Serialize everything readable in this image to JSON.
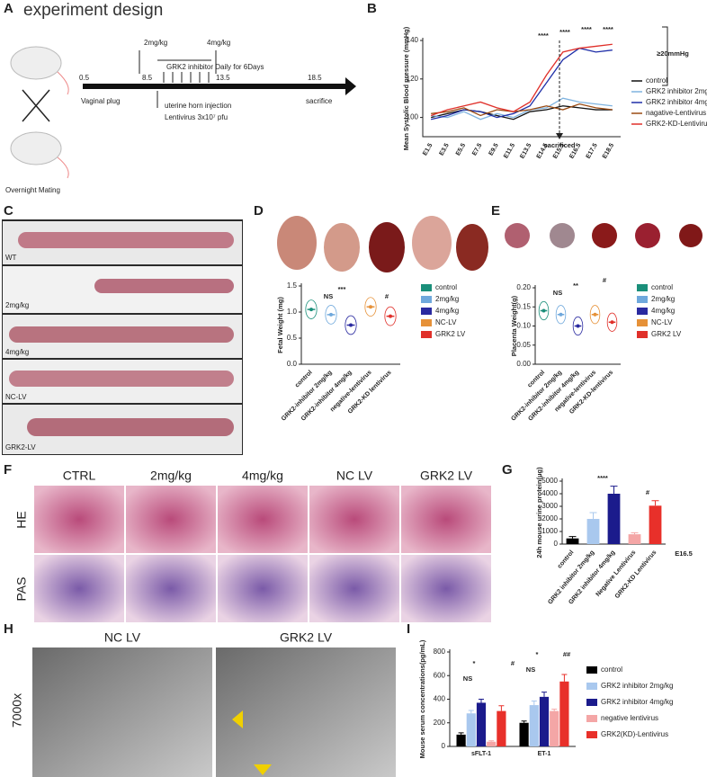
{
  "letters": [
    "A",
    "B",
    "C",
    "D",
    "E",
    "F",
    "G",
    "H",
    "I"
  ],
  "A": {
    "title": "experiment design",
    "dose_low": "2mg/kg",
    "dose_high": "4mg/kg",
    "treatment": "GRK2 inhibitor Daily for 6Days",
    "days": [
      "0.5",
      "8.5",
      "13.5",
      "18.5"
    ],
    "start": "Vaginal plug",
    "injection": "uterine horn injection",
    "lentivirus": "Lentivirus 3x10⁷ pfu",
    "end": "sacrifice",
    "mating": "Overnight Mating"
  },
  "C": {
    "labels": [
      "WT",
      "2mg/kg",
      "4mg/kg",
      "NC-LV",
      "GRK2-LV"
    ]
  },
  "F": {
    "columns": [
      "CTRL",
      "2mg/kg",
      "4mg/kg",
      "NC LV",
      "GRK2 LV"
    ],
    "rows": [
      "HE",
      "PAS"
    ]
  },
  "H": {
    "labels": [
      "NC LV",
      "GRK2 LV"
    ],
    "magnification": "7000x"
  },
  "chart_data": [
    {
      "type": "line",
      "ylabel": "Mean Systolic Blood pressure (mmHg)",
      "categories": [
        "E1.5",
        "E3.5",
        "E5.5",
        "E7.5",
        "E9.5",
        "E11.5",
        "E13.5",
        "E14.5",
        "E15.5",
        "E16.5",
        "E17.5",
        "E18.5"
      ],
      "ylim": [
        90,
        140
      ],
      "yticks": [
        100,
        120,
        140
      ],
      "series": [
        {
          "name": "control",
          "color": "#111111",
          "values": [
            100,
            102,
            104,
            103,
            101,
            99,
            103,
            104,
            106,
            105,
            104,
            104
          ]
        },
        {
          "name": "GRK2 inhibitor 2mg/kg",
          "color": "#7fb3df",
          "values": [
            101,
            100,
            103,
            99,
            102,
            100,
            104,
            105,
            110,
            108,
            107,
            106
          ]
        },
        {
          "name": "GRK2 inhibitor 4mg/kg",
          "color": "#1f2fa8",
          "values": [
            99,
            101,
            104,
            103,
            100,
            102,
            106,
            118,
            130,
            136,
            134,
            135
          ]
        },
        {
          "name": "nagative-Lentivirus",
          "color": "#9a4a12",
          "values": [
            102,
            103,
            105,
            101,
            104,
            103,
            104,
            106,
            104,
            107,
            105,
            104
          ]
        },
        {
          "name": "GRK2-KD-Lentivirus",
          "color": "#e0302a",
          "values": [
            101,
            104,
            106,
            108,
            105,
            103,
            108,
            122,
            134,
            136,
            137,
            138
          ]
        }
      ],
      "annotations": [
        "****",
        "****",
        "****",
        "****",
        "≥20mmHg",
        "sacrificed"
      ]
    },
    {
      "type": "dot",
      "ylabel": "Fetal Weight (mg)",
      "categories": [
        "control",
        "GRK2-inhibitor 2mg/kg",
        "GRK2-inhibitor 4mg/kg",
        "negative-lentivirus",
        "GRK2-KD lentivirus"
      ],
      "values": [
        1.05,
        0.95,
        0.75,
        1.1,
        0.92
      ],
      "colors": [
        "#1a8f7a",
        "#6fa8dc",
        "#2a2aa0",
        "#e69138",
        "#e0302a"
      ],
      "legend": [
        "control",
        "2mg/kg",
        "4mg/kg",
        "NC-LV",
        "GRK2 LV"
      ],
      "ylim": [
        0,
        1.5
      ],
      "yticks": [
        {
          "value": 0,
          "label": "0.0"
        },
        0.5,
        {
          "value": 1,
          "label": "1.0"
        },
        1.5
      ],
      "annotations": [
        "NS",
        "***",
        "#"
      ]
    },
    {
      "type": "dot",
      "ylabel": "Placenta Weight(g)",
      "categories": [
        "control",
        "GRK2-inhibitor 2mg/kg",
        "GRK2-inhibitor 4mg/kg",
        "negative-lentivirus",
        "GRK2-KD-lentivirus"
      ],
      "values": [
        0.14,
        0.13,
        0.1,
        0.13,
        0.11
      ],
      "colors": [
        "#1a8f7a",
        "#6fa8dc",
        "#2a2aa0",
        "#e69138",
        "#e0302a"
      ],
      "legend": [
        "control",
        "2mg/kg",
        "4mg/kg",
        "NC-LV",
        "GRK2 LV"
      ],
      "ylim": [
        0,
        0.2
      ],
      "yticks": [
        {
          "value": 0,
          "label": "0.00"
        },
        0.05,
        {
          "value": 0.1,
          "label": "0.10"
        },
        0.15,
        {
          "value": 0.2,
          "label": "0.20"
        }
      ],
      "annotations": [
        "NS",
        "**",
        "#"
      ]
    },
    {
      "type": "bar",
      "ylabel": "24h mouse urine protein(μg)",
      "categories": [
        "control",
        "GRK2 inhibitor 2mg/kg",
        "GRK2 inhibitor 4mg/kg",
        "Negative Lentivirus",
        "GRK2-KD Lentivirus"
      ],
      "values": [
        450,
        2000,
        4000,
        780,
        3050
      ],
      "errors": [
        150,
        500,
        600,
        120,
        400
      ],
      "colors": [
        "#000000",
        "#a9c8ee",
        "#1b1b8c",
        "#f4a6a6",
        "#e8302a"
      ],
      "ylim": [
        0,
        5000
      ],
      "yticks": [
        0,
        1000,
        2000,
        3000,
        4000,
        5000
      ],
      "annotations": [
        "****",
        "#",
        "E16.5"
      ]
    },
    {
      "type": "bar",
      "ylabel": "Mouse serum concentrations(pg/mL)",
      "categories": [
        "sFLT-1",
        "ET-1"
      ],
      "ylim": [
        0,
        800
      ],
      "yticks": [
        0,
        200,
        400,
        600,
        800
      ],
      "series": [
        {
          "name": "control",
          "color": "#000000",
          "values": [
            100,
            200
          ],
          "errors": [
            15,
            15
          ]
        },
        {
          "name": "GRK2 inhibitor 2mg/kg",
          "color": "#a9c8ee",
          "values": [
            280,
            350
          ],
          "errors": [
            25,
            35
          ]
        },
        {
          "name": "GRK2 inhibitor 4mg/kg",
          "color": "#1b1b8c",
          "values": [
            370,
            420
          ],
          "errors": [
            30,
            40
          ]
        },
        {
          "name": "negative lentivirus",
          "color": "#f4a6a6",
          "values": [
            40,
            300
          ],
          "errors": [
            8,
            15
          ]
        },
        {
          "name": "GRK2(KD)-Lentivirus",
          "color": "#e8302a",
          "values": [
            300,
            550
          ],
          "errors": [
            45,
            60
          ]
        }
      ],
      "annotations": [
        "NS",
        "*",
        "#",
        "NS",
        "*",
        "##"
      ]
    }
  ]
}
